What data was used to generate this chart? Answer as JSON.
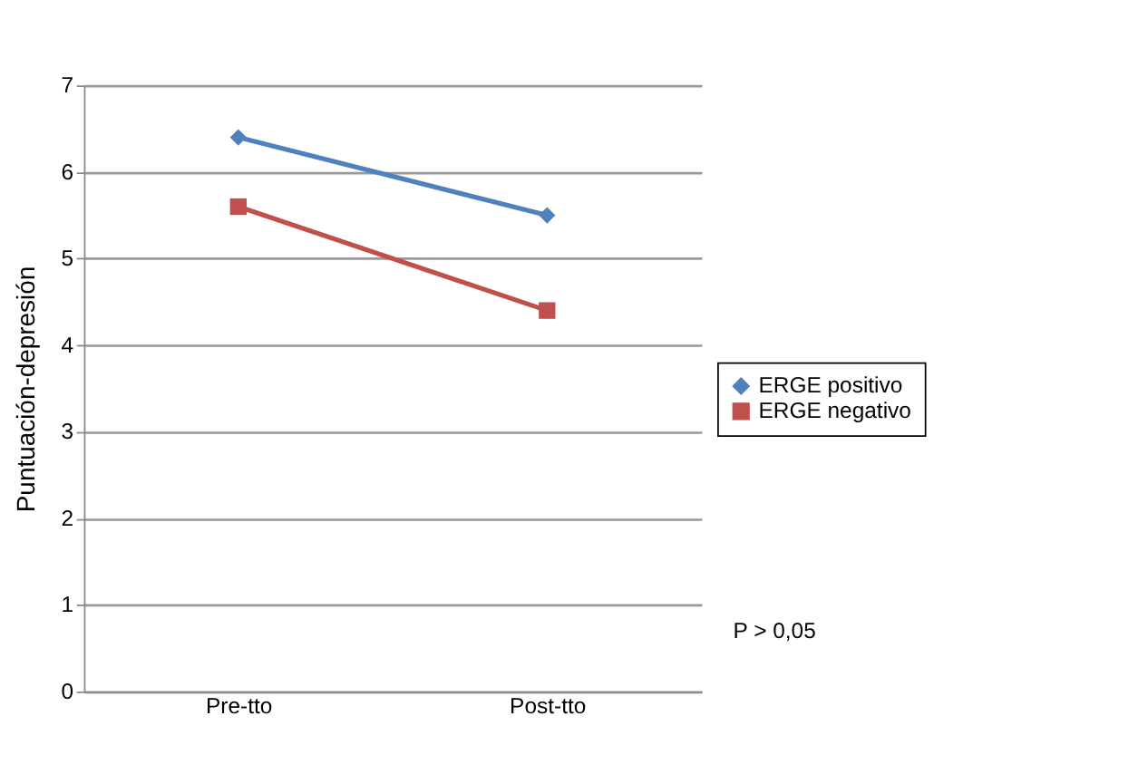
{
  "chart_data": {
    "type": "line",
    "ylabel": "Puntuación-depresión",
    "categories": [
      "Pre-tto",
      "Post-tto"
    ],
    "series": [
      {
        "name": "ERGE positivo",
        "color": "#4f81bd",
        "marker": "diamond",
        "values": [
          6.4,
          5.5
        ]
      },
      {
        "name": "ERGE negativo",
        "color": "#c0504d",
        "marker": "square",
        "values": [
          5.6,
          4.4
        ]
      }
    ],
    "ylim": [
      0,
      7
    ],
    "yticks": [
      0,
      1,
      2,
      3,
      4,
      5,
      6,
      7
    ],
    "grid": "y",
    "legend": "right",
    "line_style": "solid",
    "annotations": [
      "P > 0,05"
    ]
  }
}
